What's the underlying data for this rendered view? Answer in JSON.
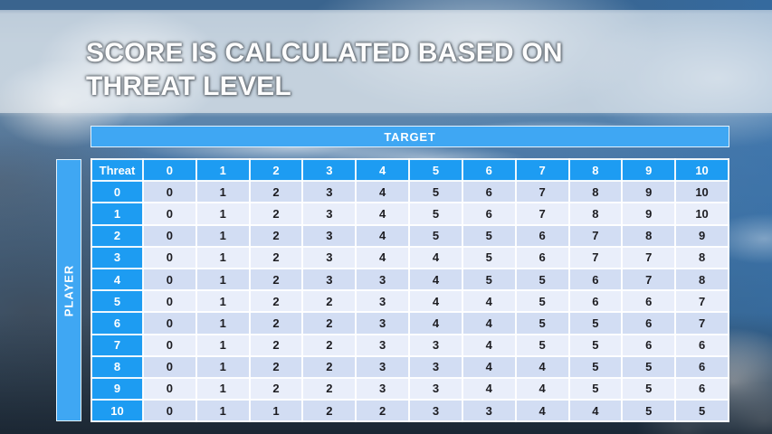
{
  "title": {
    "line1": "SCORE IS CALCULATED BASED ON",
    "line2": "THREAT LEVEL"
  },
  "matrix": {
    "target_label": "TARGET",
    "player_label": "PLAYER",
    "corner_label": "Threat",
    "column_headers": [
      "0",
      "1",
      "2",
      "3",
      "4",
      "5",
      "6",
      "7",
      "8",
      "9",
      "10"
    ],
    "row_headers": [
      "0",
      "1",
      "2",
      "3",
      "4",
      "5",
      "6",
      "7",
      "8",
      "9",
      "10"
    ],
    "rows": [
      [
        0,
        1,
        2,
        3,
        4,
        5,
        6,
        7,
        8,
        9,
        10
      ],
      [
        0,
        1,
        2,
        3,
        4,
        5,
        6,
        7,
        8,
        9,
        10
      ],
      [
        0,
        1,
        2,
        3,
        4,
        5,
        5,
        6,
        7,
        8,
        9
      ],
      [
        0,
        1,
        2,
        3,
        4,
        4,
        5,
        6,
        7,
        7,
        8
      ],
      [
        0,
        1,
        2,
        3,
        3,
        4,
        5,
        5,
        6,
        7,
        8
      ],
      [
        0,
        1,
        2,
        2,
        3,
        4,
        4,
        5,
        6,
        6,
        7
      ],
      [
        0,
        1,
        2,
        2,
        3,
        4,
        4,
        5,
        5,
        6,
        7
      ],
      [
        0,
        1,
        2,
        2,
        3,
        3,
        4,
        5,
        5,
        6,
        6
      ],
      [
        0,
        1,
        2,
        2,
        3,
        3,
        4,
        4,
        5,
        5,
        6
      ],
      [
        0,
        1,
        2,
        2,
        3,
        3,
        4,
        4,
        5,
        5,
        6
      ],
      [
        0,
        1,
        1,
        2,
        2,
        3,
        3,
        4,
        4,
        5,
        5
      ]
    ]
  },
  "colors": {
    "header_blue": "#1D9CF2",
    "bar_blue": "#3FA7F3",
    "row_even": "#D2DDF3",
    "row_odd": "#E9EEFA",
    "title_text": "#FDFDFD",
    "cell_text": "#1D1D22"
  }
}
